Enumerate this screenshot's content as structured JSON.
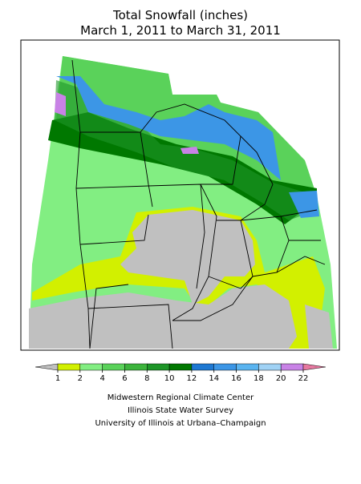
{
  "title": "Total Snowfall (inches)",
  "subtitle": "March 1, 2011 to March 31, 2011",
  "legend": {
    "ticks": [
      1,
      2,
      4,
      6,
      8,
      10,
      12,
      14,
      16,
      18,
      20,
      22
    ],
    "colors": [
      "#c0c0c0",
      "#d2f000",
      "#82ee82",
      "#5ad25a",
      "#3cb43c",
      "#1e9628",
      "#007800",
      "#1e78d2",
      "#3c96e6",
      "#5ab4f0",
      "#a0d2f5",
      "#c882e6",
      "#e678a0"
    ]
  },
  "credits": [
    "Midwestern Regional Climate Center",
    "Illinois State Water Survey",
    "University of Illinois at Urbana–Champaign"
  ]
}
